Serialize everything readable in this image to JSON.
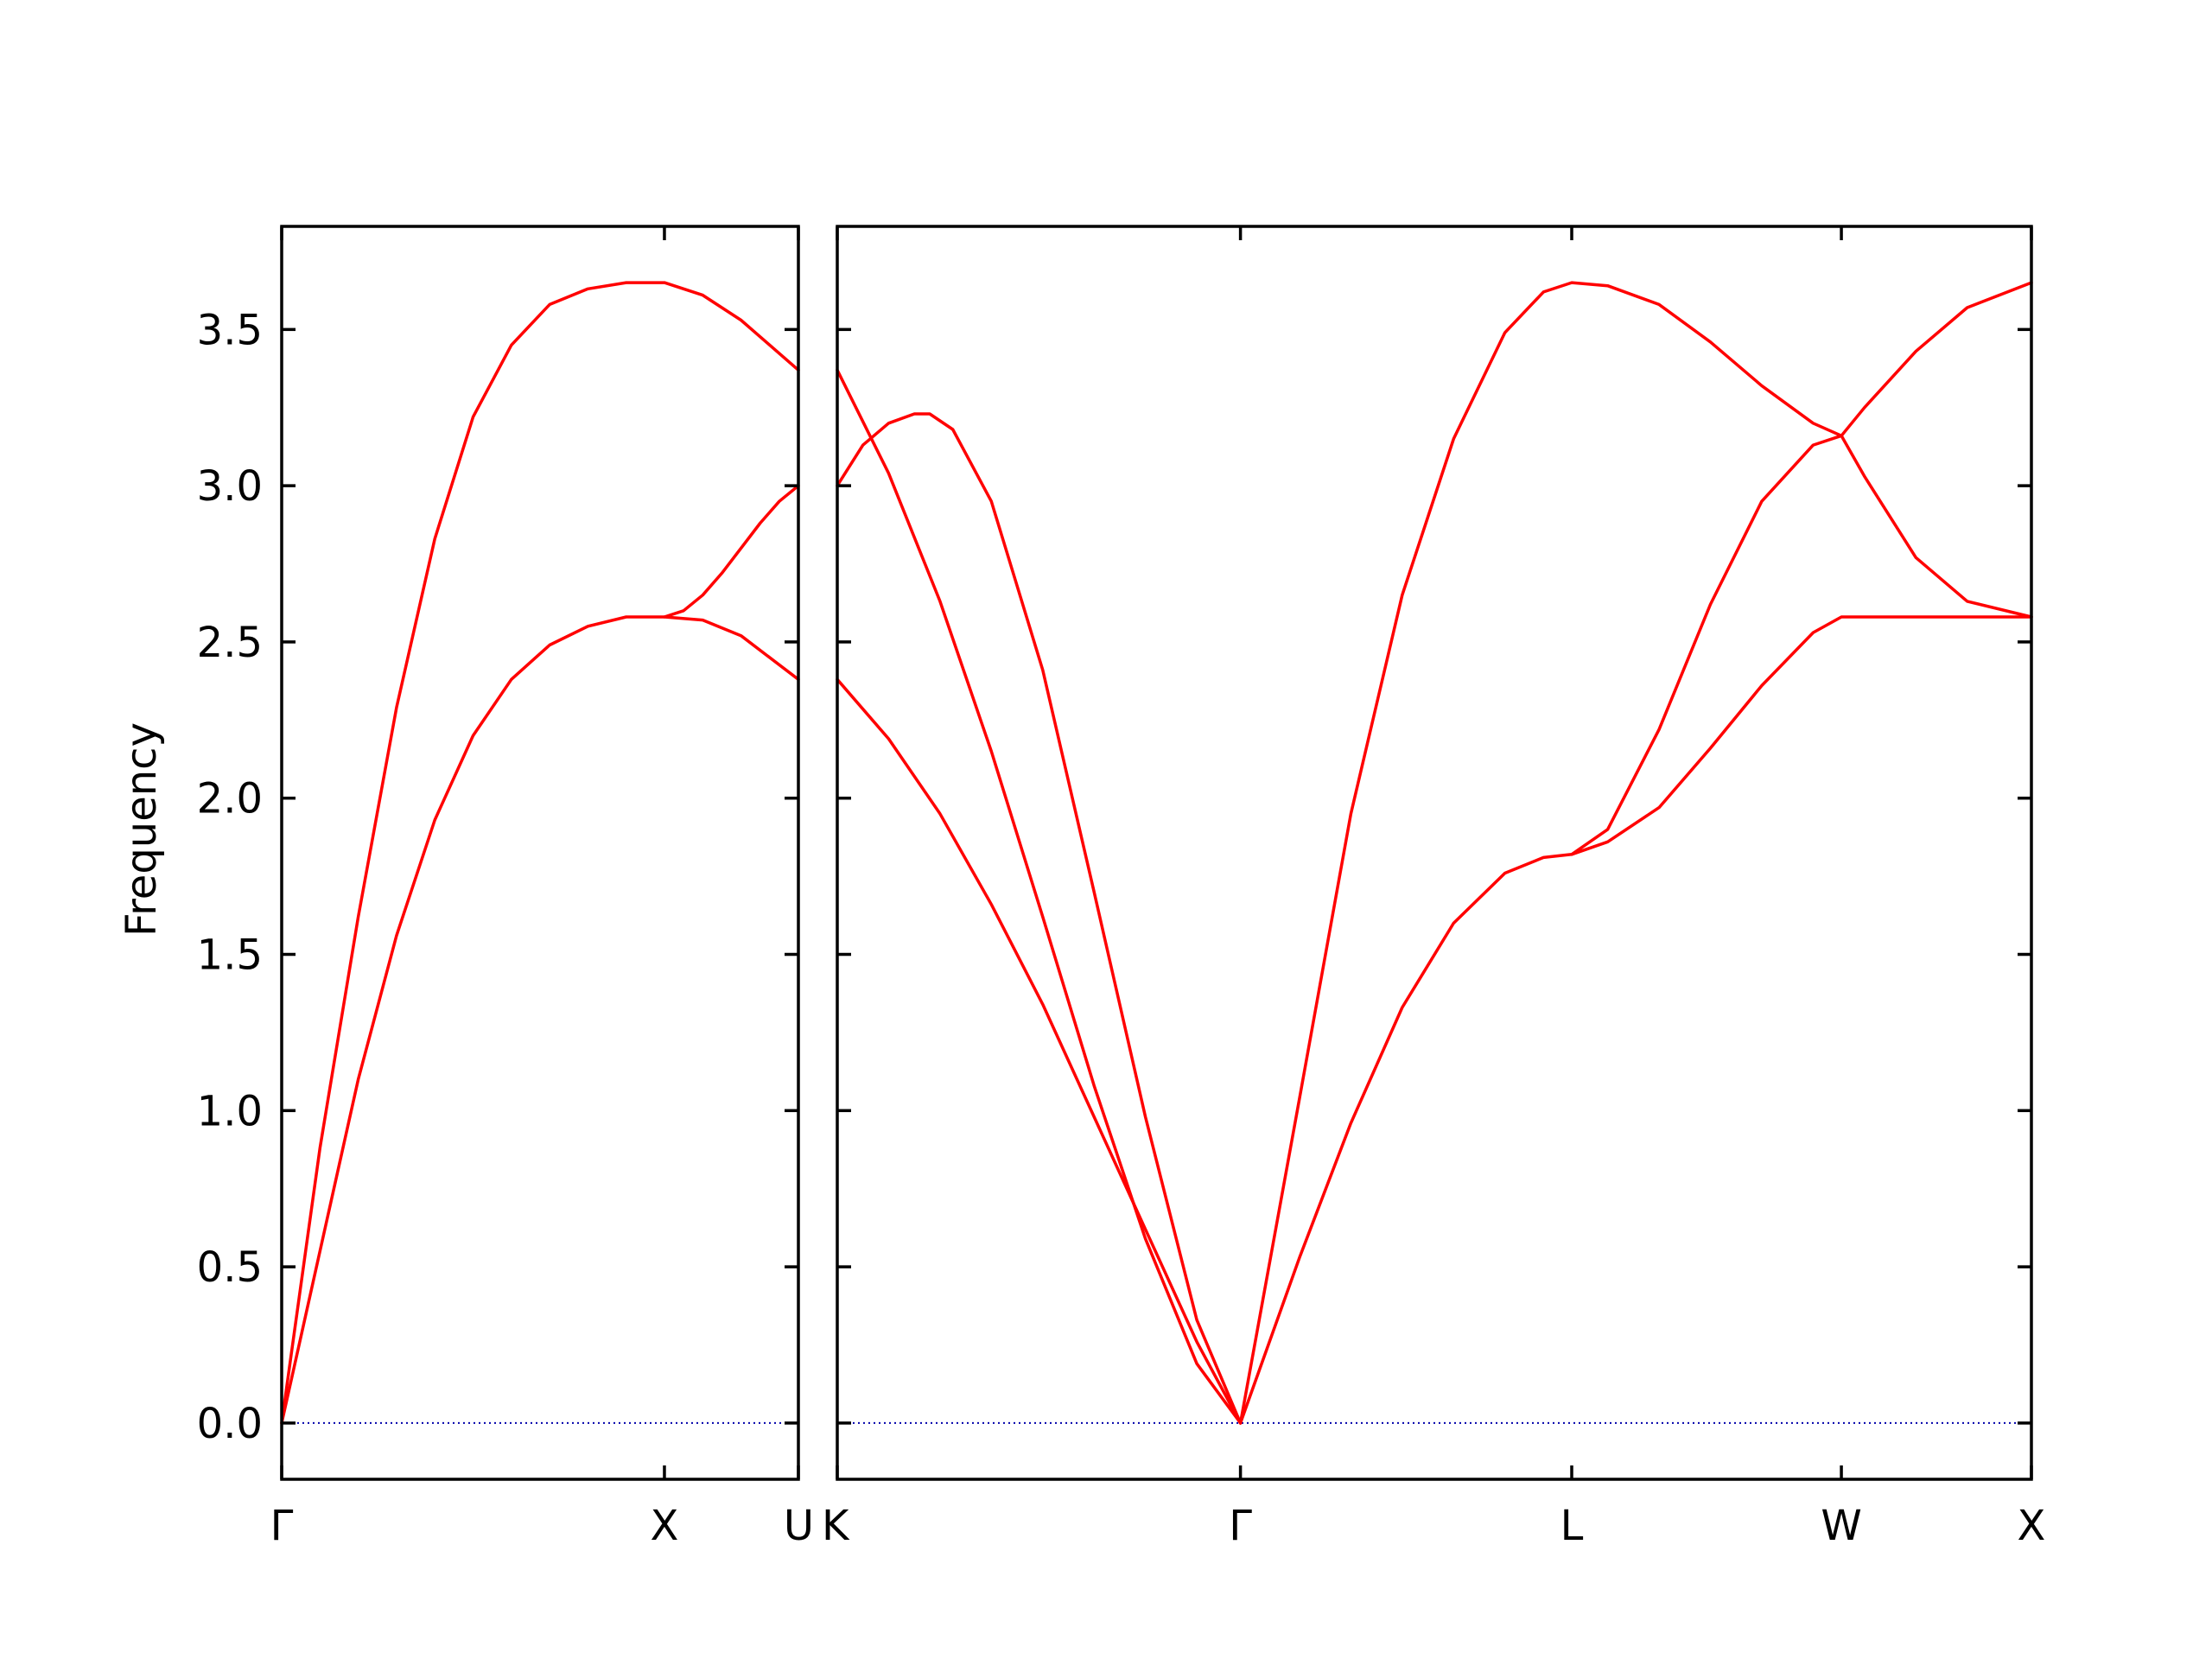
{
  "chart_data": {
    "type": "line",
    "title": "",
    "ylabel": "Frequency",
    "ylim": [
      -0.18,
      3.83
    ],
    "yticks": [
      0.0,
      0.5,
      1.0,
      1.5,
      2.0,
      2.5,
      3.0,
      3.5
    ],
    "ytick_labels": [
      "0.0",
      "0.5",
      "1.0",
      "1.5",
      "2.0",
      "2.5",
      "3.0",
      "3.5"
    ],
    "grid": false,
    "band_color": "#ff0000",
    "zero_line_color": "#0000aa",
    "panels": [
      {
        "xlim": [
          0,
          1.35
        ],
        "high_symmetry_points": [
          {
            "x": 0,
            "label": "Γ"
          },
          {
            "x": 1.0,
            "label": "X"
          },
          {
            "x": 1.35,
            "label": "U"
          }
        ],
        "series": [
          {
            "x": [
              0,
              0.1,
              0.2,
              0.3,
              0.4,
              0.5,
              0.6,
              0.7,
              0.8,
              0.9,
              1.0,
              1.1,
              1.2,
              1.35
            ],
            "y": [
              0.0,
              0.88,
              1.62,
              2.29,
              2.83,
              3.22,
              3.45,
              3.58,
              3.63,
              3.65,
              3.65,
              3.61,
              3.53,
              3.37
            ]
          },
          {
            "x": [
              0,
              0.1,
              0.2,
              0.3,
              0.4,
              0.5,
              0.6,
              0.7,
              0.8,
              0.9,
              1.0,
              1.1,
              1.2,
              1.35
            ],
            "y": [
              0.0,
              0.55,
              1.1,
              1.56,
              1.93,
              2.2,
              2.38,
              2.49,
              2.55,
              2.58,
              2.58,
              2.57,
              2.52,
              2.38
            ]
          },
          {
            "x": [
              1.0,
              1.05,
              1.1,
              1.15,
              1.2,
              1.25,
              1.3,
              1.35
            ],
            "y": [
              2.58,
              2.6,
              2.65,
              2.72,
              2.8,
              2.88,
              2.95,
              3.0
            ]
          }
        ]
      },
      {
        "xlim": [
          0,
          4.65
        ],
        "high_symmetry_points": [
          {
            "x": 0,
            "label": "K"
          },
          {
            "x": 1.57,
            "label": "Γ"
          },
          {
            "x": 2.86,
            "label": "L"
          },
          {
            "x": 3.91,
            "label": "W"
          },
          {
            "x": 4.65,
            "label": "X"
          }
        ],
        "series": [
          {
            "x": [
              0,
              0.2,
              0.4,
              0.6,
              0.8,
              1.0,
              1.2,
              1.4,
              1.57
            ],
            "y": [
              2.38,
              2.19,
              1.95,
              1.66,
              1.34,
              0.98,
              0.62,
              0.26,
              0.0
            ]
          },
          {
            "x": [
              0,
              0.2,
              0.4,
              0.6,
              0.8,
              1.0,
              1.2,
              1.4,
              1.57
            ],
            "y": [
              3.37,
              3.04,
              2.63,
              2.15,
              1.62,
              1.08,
              0.59,
              0.19,
              0.0
            ]
          },
          {
            "x": [
              0,
              0.1,
              0.2,
              0.3,
              0.36,
              0.45,
              0.6,
              0.8,
              1.0,
              1.2,
              1.4,
              1.57
            ],
            "y": [
              3.0,
              3.13,
              3.2,
              3.23,
              3.23,
              3.18,
              2.95,
              2.41,
              1.7,
              0.98,
              0.33,
              0.0
            ]
          },
          {
            "x": [
              1.57,
              1.8,
              2.0,
              2.2,
              2.4,
              2.6,
              2.75,
              2.86,
              3.0,
              3.2,
              3.4,
              3.6,
              3.8,
              3.91,
              4.0,
              4.2,
              4.4,
              4.65
            ],
            "y": [
              0.0,
              1.04,
              1.95,
              2.65,
              3.15,
              3.49,
              3.62,
              3.65,
              3.64,
              3.58,
              3.46,
              3.32,
              3.2,
              3.16,
              3.25,
              3.43,
              3.57,
              3.65
            ]
          },
          {
            "x": [
              1.57,
              1.8,
              2.0,
              2.2,
              2.4,
              2.6,
              2.75,
              2.86,
              3.0,
              3.2,
              3.4,
              3.6,
              3.8,
              3.91,
              4.0,
              4.2,
              4.4,
              4.65
            ],
            "y": [
              0.0,
              0.53,
              0.96,
              1.33,
              1.6,
              1.76,
              1.81,
              1.82,
              1.9,
              2.22,
              2.62,
              2.95,
              3.13,
              3.16,
              3.03,
              2.77,
              2.63,
              2.58
            ]
          },
          {
            "x": [
              2.86,
              3.0,
              3.2,
              3.4,
              3.6,
              3.8,
              3.91,
              4.0,
              4.2,
              4.4,
              4.65
            ],
            "y": [
              1.82,
              1.86,
              1.97,
              2.16,
              2.36,
              2.53,
              2.58,
              2.58,
              2.58,
              2.58,
              2.58
            ]
          }
        ]
      }
    ]
  }
}
